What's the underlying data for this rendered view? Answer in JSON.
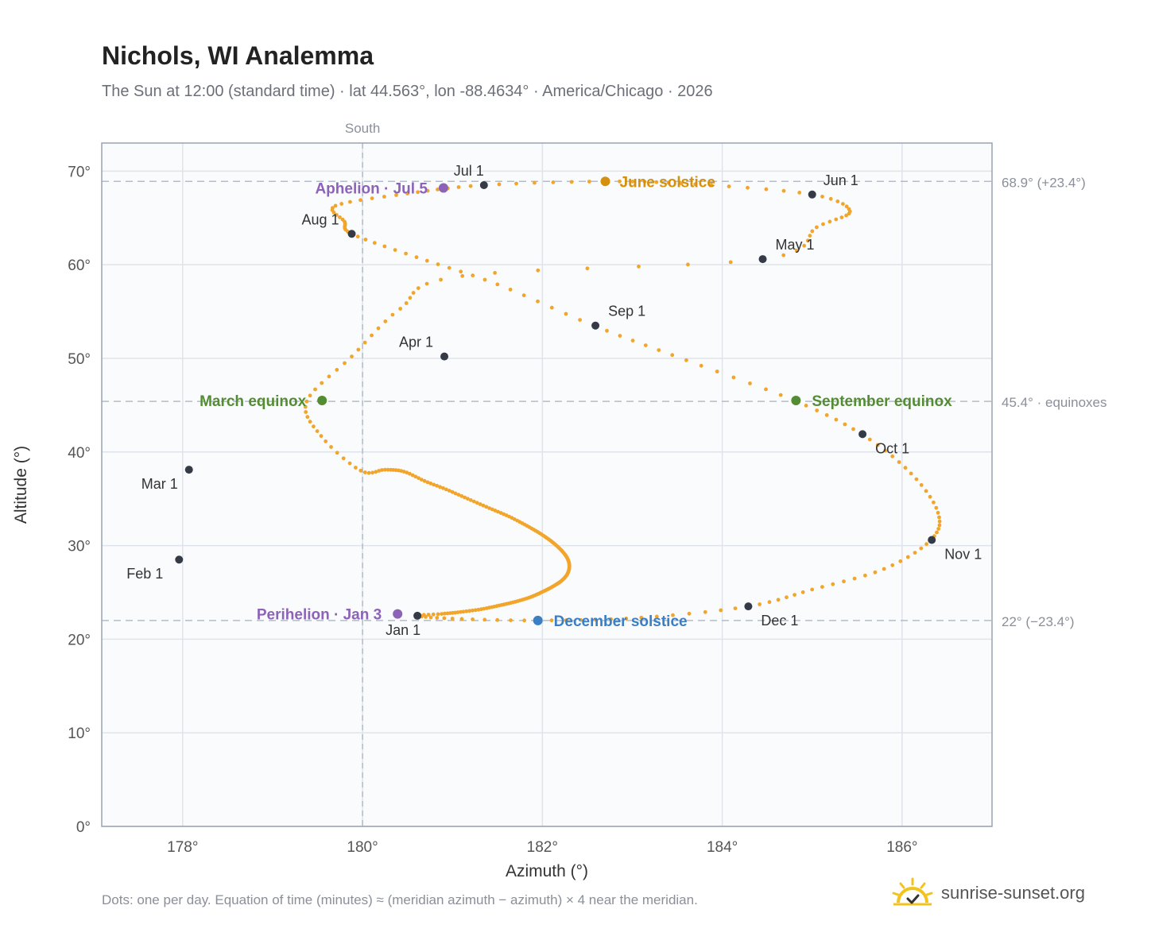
{
  "header": {
    "title": "Nichols, WI Analemma",
    "subtitle": "The Sun at 12:00 (standard time) · lat 44.563°, lon -88.4634° · America/Chicago · 2026"
  },
  "footer": {
    "note": "Dots: one per day. Equation of time (minutes) ≈ (meridian azimuth − azimuth) × 4 near the meridian.",
    "brand": "sunrise-sunset.org"
  },
  "colors": {
    "path": "#f2a52b",
    "month_marker": "#343a46",
    "june_solstice": "#d4900e",
    "december_solstice": "#3a7ec4",
    "equinox": "#548c33",
    "apsis": "#8d63b8",
    "grid": "#dfe4ea",
    "plot_bg": "#f9fbfd",
    "frame": "#9aa3b0"
  },
  "chart_data": {
    "type": "scatter",
    "xlabel": "Azimuth (°)",
    "ylabel": "Altitude (°)",
    "xlim": [
      177.1,
      187.0
    ],
    "ylim": [
      0,
      73
    ],
    "x_ticks": [
      178,
      180,
      182,
      184,
      186
    ],
    "x_tick_labels": [
      "178°",
      "180°",
      "182°",
      "184°",
      "186°"
    ],
    "y_ticks": [
      0,
      10,
      20,
      30,
      40,
      50,
      60,
      70
    ],
    "y_tick_labels": [
      "0°",
      "10°",
      "20°",
      "30°",
      "40°",
      "50°",
      "60°",
      "70°"
    ],
    "grid": true,
    "meridian": {
      "azimuth": 180,
      "label": "South"
    },
    "reference_lines": [
      {
        "altitude": 68.9,
        "label": "68.9° (+23.4°)"
      },
      {
        "altitude": 45.4,
        "label": "45.4° · equinoxes"
      },
      {
        "altitude": 22.0,
        "label": "22° (−23.4°)"
      }
    ],
    "series": [
      {
        "points": [
          [
            180.61,
            22.5
          ],
          [
            180.88,
            22.7
          ],
          [
            181.09,
            22.9
          ],
          [
            181.32,
            23.2
          ],
          [
            181.52,
            23.6
          ],
          [
            181.7,
            24.0
          ],
          [
            181.87,
            24.5
          ],
          [
            182.01,
            25.1
          ],
          [
            182.13,
            25.7
          ],
          [
            182.22,
            26.3
          ],
          [
            182.28,
            27.0
          ],
          [
            182.3,
            27.8
          ],
          [
            182.28,
            28.6
          ],
          [
            182.22,
            29.4
          ],
          [
            182.12,
            30.3
          ],
          [
            181.99,
            31.2
          ],
          [
            181.83,
            32.1
          ],
          [
            181.63,
            33.1
          ],
          [
            181.41,
            34.0
          ],
          [
            181.17,
            35.0
          ],
          [
            180.93,
            36.0
          ],
          [
            180.69,
            36.9
          ],
          [
            180.46,
            37.9
          ],
          [
            180.25,
            38.1
          ],
          [
            179.98,
            38.0
          ],
          [
            179.54,
            41.7
          ],
          [
            179.38,
            45.4
          ],
          [
            179.88,
            50.2
          ],
          [
            180.42,
            55.3
          ],
          [
            181.11,
            58.8
          ],
          [
            184.45,
            60.6
          ],
          [
            185.05,
            64.0
          ],
          [
            185.42,
            65.7
          ],
          [
            185.0,
            67.5
          ],
          [
            183.7,
            68.6
          ],
          [
            182.7,
            68.9
          ],
          [
            181.35,
            68.5
          ],
          [
            180.5,
            67.6
          ],
          [
            179.7,
            66.3
          ],
          [
            179.8,
            64.6
          ],
          [
            179.88,
            63.3
          ],
          [
            180.6,
            60.8
          ],
          [
            181.5,
            57.9
          ],
          [
            182.57,
            53.5
          ],
          [
            183.6,
            49.8
          ],
          [
            184.8,
            45.5
          ],
          [
            185.55,
            41.9
          ],
          [
            186.1,
            37.7
          ],
          [
            186.4,
            33.5
          ],
          [
            186.32,
            30.6
          ],
          [
            185.8,
            27.5
          ],
          [
            185.0,
            25.3
          ],
          [
            184.29,
            23.5
          ],
          [
            183.1,
            22.3
          ],
          [
            181.95,
            22.0
          ],
          [
            181.0,
            22.2
          ]
        ]
      }
    ],
    "month_markers": [
      {
        "label": "Jan 1",
        "x": 180.61,
        "y": 22.5
      },
      {
        "label": "Feb 1",
        "x": 177.96,
        "y": 28.5
      },
      {
        "label": "Mar 1",
        "x": 178.07,
        "y": 38.1
      },
      {
        "label": "Apr 1",
        "x": 180.91,
        "y": 50.2
      },
      {
        "label": "May 1",
        "x": 184.45,
        "y": 60.6
      },
      {
        "label": "Jun 1",
        "x": 185.0,
        "y": 67.5
      },
      {
        "label": "Jul 1",
        "x": 181.35,
        "y": 68.5
      },
      {
        "label": "Aug 1",
        "x": 179.88,
        "y": 63.3
      },
      {
        "label": "Sep 1",
        "x": 182.59,
        "y": 53.5
      },
      {
        "label": "Oct 1",
        "x": 185.56,
        "y": 41.9
      },
      {
        "label": "Nov 1",
        "x": 186.33,
        "y": 30.6
      },
      {
        "label": "Dec 1",
        "x": 184.29,
        "y": 23.5
      }
    ],
    "events": [
      {
        "label": "June solstice",
        "x": 182.7,
        "y": 68.9,
        "kind": "june_solstice"
      },
      {
        "label": "December solstice",
        "x": 181.95,
        "y": 22.0,
        "kind": "december_solstice"
      },
      {
        "label": "March equinox",
        "x": 179.55,
        "y": 45.5,
        "kind": "equinox"
      },
      {
        "label": "September equinox",
        "x": 184.82,
        "y": 45.5,
        "kind": "equinox"
      },
      {
        "label": "Aphelion · Jul 5",
        "x": 180.9,
        "y": 68.2,
        "kind": "apsis"
      },
      {
        "label": "Perihelion · Jan 3",
        "x": 180.39,
        "y": 22.7,
        "kind": "apsis"
      }
    ]
  }
}
